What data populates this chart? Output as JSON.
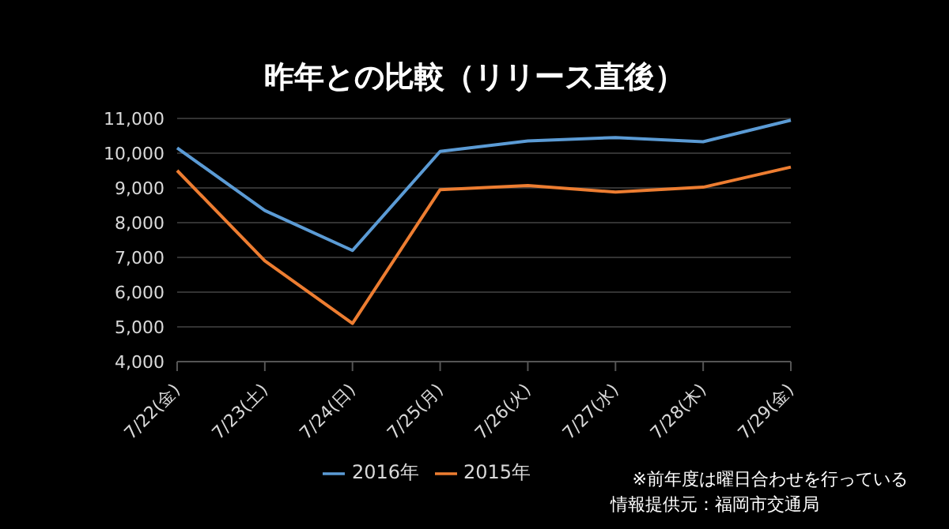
{
  "chart_data": {
    "type": "line",
    "title": "昨年との比較（リリース直後）",
    "categories": [
      "7/22(金)",
      "7/23(土)",
      "7/24(日)",
      "7/25(月)",
      "7/26(火)",
      "7/27(水)",
      "7/28(木)",
      "7/29(金)"
    ],
    "series": [
      {
        "name": "2016年",
        "color": "#5b9bd5",
        "values": [
          10150,
          8350,
          7200,
          10050,
          10350,
          10450,
          10330,
          10950
        ]
      },
      {
        "name": "2015年",
        "color": "#ed7d31",
        "values": [
          9500,
          6900,
          5100,
          8950,
          9070,
          8880,
          9020,
          9600
        ]
      }
    ],
    "ylim": [
      4000,
      11000
    ],
    "yticks": [
      {
        "value": 4000,
        "label": "4,000"
      },
      {
        "value": 5000,
        "label": "5,000"
      },
      {
        "value": 6000,
        "label": "6,000"
      },
      {
        "value": 7000,
        "label": "7,000"
      },
      {
        "value": 8000,
        "label": "8,000"
      },
      {
        "value": 9000,
        "label": "9,000"
      },
      {
        "value": 10000,
        "label": "10,000"
      },
      {
        "value": 11000,
        "label": "11,000"
      }
    ],
    "grid": "y",
    "legend": "bottom",
    "marker": "none",
    "line_style": "solid",
    "annotations": [
      "※前年度は曜日合わせを行っている",
      "情報提供元：福岡市交通局"
    ]
  }
}
